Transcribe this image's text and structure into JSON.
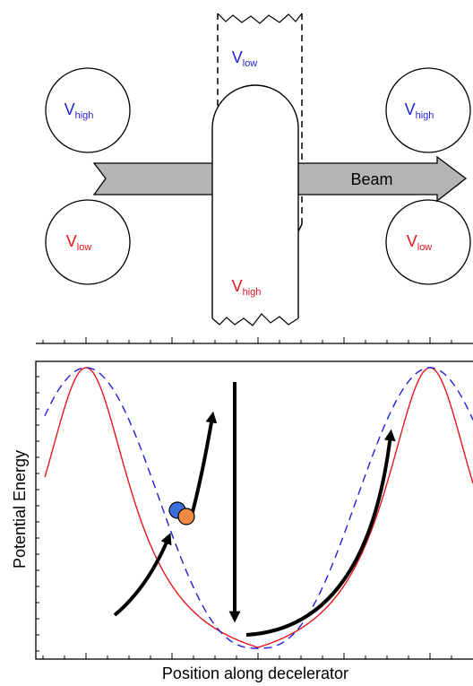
{
  "electrodes": [
    {
      "label": "V",
      "subscript": "low",
      "color": "#1f1fdc"
    },
    {
      "label": "V",
      "subscript": "high",
      "color": "#1f1fdc"
    },
    {
      "label": "V",
      "subscript": "low",
      "color": "#e8141e"
    },
    {
      "label": "V",
      "subscript": "high",
      "color": "#1f1fdc"
    },
    {
      "label": "V",
      "subscript": "low",
      "color": "#e8141e"
    },
    {
      "label": "V",
      "subscript": "high",
      "color": "#e8141e"
    }
  ],
  "beam_label": "Beam",
  "plot": {
    "y_label": "Potential Energy",
    "x_label": "Position along decelerator"
  }
}
